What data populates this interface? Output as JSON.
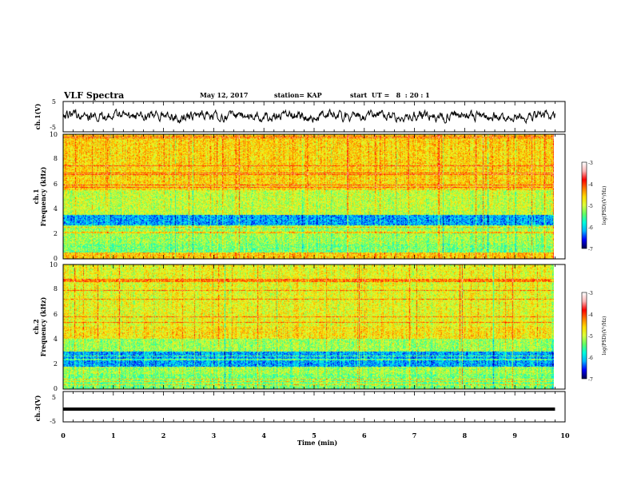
{
  "header": {
    "title": "VLF Spectra",
    "date": "May 12, 2017",
    "station": "station= KAP",
    "start_ut": "start  UT =   8  : 20 : 1"
  },
  "colors": {
    "waveform": "#000000",
    "colormap": [
      "#000050",
      "#0000ff",
      "#00b4ff",
      "#00ffdc",
      "#64ff64",
      "#dcff3c",
      "#ffdc00",
      "#ff7800",
      "#ff0000",
      "#ffb4b4",
      "#ffffff"
    ]
  },
  "chart_data": [
    {
      "type": "line",
      "panel": "ch1-waveform",
      "ylabel": "ch.1(V)",
      "yticks": [
        "5",
        "-5"
      ],
      "ylim": [
        -5,
        5
      ],
      "xlim": [
        0,
        10
      ]
    },
    {
      "type": "heatmap",
      "panel": "ch1-spectrogram",
      "ylabel": "ch.1\nFrequency (kHz)",
      "ylabel_lines": [
        "ch.1",
        "Frequency (kHz)"
      ],
      "yticks": [
        "0",
        "2",
        "4",
        "6",
        "8",
        "10"
      ],
      "ylim": [
        0,
        10
      ],
      "xlim": [
        0,
        10
      ],
      "data_end_min": 9.8,
      "colorbar": {
        "label": "log(PSD)(V²/Hz)",
        "ticks": [
          "-3",
          "-4",
          "-5",
          "-6",
          "-7"
        ],
        "range": [
          -7,
          -3
        ]
      },
      "bands": [
        {
          "freq_khz": [
            0,
            0.5
          ],
          "level": -4.0
        },
        {
          "freq_khz": [
            0.5,
            1.2
          ],
          "level": -5.0
        },
        {
          "freq_khz": [
            1.2,
            2.7
          ],
          "level": -4.8
        },
        {
          "freq_khz": [
            2.7,
            3.5
          ],
          "level": -6.0
        },
        {
          "freq_khz": [
            3.5,
            5.5
          ],
          "level": -4.6
        },
        {
          "freq_khz": [
            5.5,
            10
          ],
          "level": -4.1
        }
      ]
    },
    {
      "type": "heatmap",
      "panel": "ch2-spectrogram",
      "ylabel": "ch.2\nFrequency (kHz)",
      "ylabel_lines": [
        "ch.2",
        "Frequency (kHz)"
      ],
      "yticks": [
        "0",
        "2",
        "4",
        "6",
        "8",
        "10"
      ],
      "ylim": [
        0,
        10
      ],
      "xlim": [
        0,
        10
      ],
      "data_end_min": 9.8,
      "colorbar": {
        "label": "log(PSD)(V²/Hz)",
        "ticks": [
          "-3",
          "-4",
          "-5",
          "-6",
          "-7"
        ],
        "range": [
          -7,
          -3
        ]
      },
      "bands": [
        {
          "freq_khz": [
            0,
            1.2
          ],
          "level": -5.0
        },
        {
          "freq_khz": [
            1.2,
            1.8
          ],
          "level": -4.8
        },
        {
          "freq_khz": [
            1.8,
            3.0
          ],
          "level": -6.0
        },
        {
          "freq_khz": [
            3.0,
            4.0
          ],
          "level": -4.8
        },
        {
          "freq_khz": [
            4.0,
            5.0
          ],
          "level": -4.2
        },
        {
          "freq_khz": [
            5.0,
            10
          ],
          "level": -4.4
        }
      ]
    },
    {
      "type": "line",
      "panel": "ch3-waveform",
      "ylabel": "ch.3(V)",
      "yticks": [
        "5",
        "-5"
      ],
      "ylim": [
        -5,
        5
      ],
      "xlim": [
        0,
        10
      ],
      "series": [
        {
          "x": [
            0,
            9.8
          ],
          "y": [
            0,
            0
          ]
        }
      ]
    }
  ],
  "xaxis": {
    "label": "Time (min)",
    "ticks": [
      "0",
      "1",
      "2",
      "3",
      "4",
      "5",
      "6",
      "7",
      "8",
      "9",
      "10"
    ],
    "range": [
      0,
      10
    ]
  }
}
